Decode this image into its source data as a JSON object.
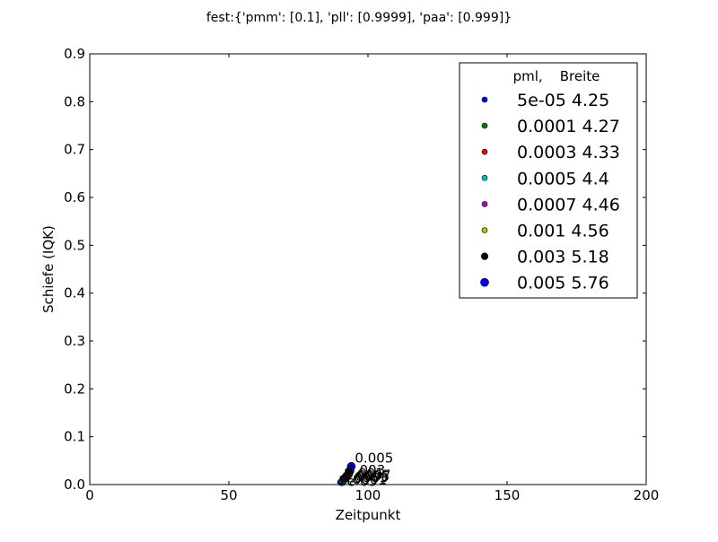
{
  "chart_data": {
    "type": "scatter",
    "title": "fest:{'pmm': [0.1], 'pll': [0.9999], 'paa': [0.999]}",
    "xlabel": "Zeitpunkt",
    "ylabel": "Schiefe (IQK)",
    "xlim": [
      0,
      200
    ],
    "ylim": [
      0,
      0.9
    ],
    "xticks": [
      "0",
      "50",
      "100",
      "150",
      "200"
    ],
    "yticks": [
      "0.0",
      "0.1",
      "0.2",
      "0.3",
      "0.4",
      "0.5",
      "0.6",
      "0.7",
      "0.8",
      "0.9"
    ],
    "grid": false,
    "legend_placement": "top-right",
    "legend_title": "pml,    Breite",
    "series": [
      {
        "name": "5e-05  4.25",
        "label": "5e-05",
        "color": "#0000ff",
        "marker": "small",
        "x": 90,
        "y": 0.005
      },
      {
        "name": "0.0001  4.27",
        "label": "0.0001",
        "color": "#008000",
        "marker": "small",
        "x": 90.5,
        "y": 0.008
      },
      {
        "name": "0.0003  4.33",
        "label": "0.0003",
        "color": "#ff0000",
        "marker": "small",
        "x": 91,
        "y": 0.012
      },
      {
        "name": "0.0005  4.4",
        "label": "0.0005",
        "color": "#00bfbf",
        "marker": "small",
        "x": 91.5,
        "y": 0.015
      },
      {
        "name": "0.0007  4.46",
        "label": "0.0007",
        "color": "#bf00bf",
        "marker": "small",
        "x": 92,
        "y": 0.018
      },
      {
        "name": "0.001  4.56",
        "label": "0.001",
        "color": "#bfbf00",
        "marker": "small",
        "x": 92.5,
        "y": 0.022
      },
      {
        "name": "0.003  5.18",
        "label": "0.003",
        "color": "#000000",
        "marker": "medium",
        "x": 93,
        "y": 0.028
      },
      {
        "name": "0.005  5.76",
        "label": "0.005",
        "color": "#0000ff",
        "marker": "large",
        "x": 94,
        "y": 0.038
      }
    ]
  }
}
